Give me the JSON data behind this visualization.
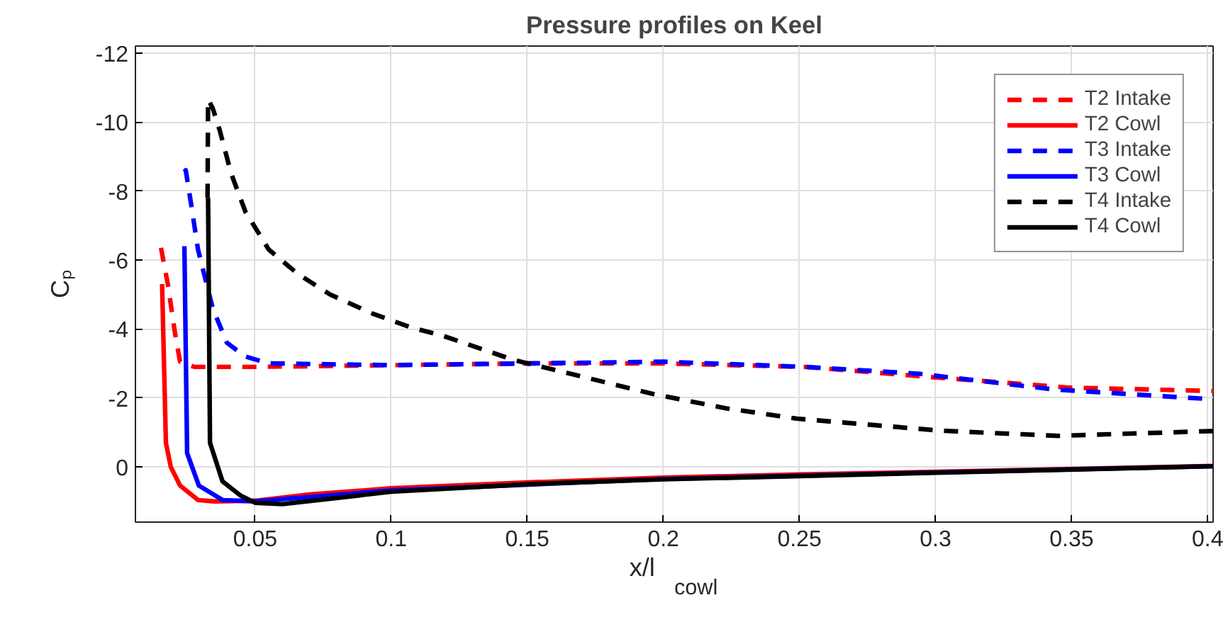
{
  "chart_data": {
    "type": "line",
    "title": "Pressure profiles on Keel",
    "xlabel": "x/l$_{cowl}$",
    "ylabel": "Cₚ",
    "xlim": [
      0.006,
      0.402
    ],
    "ylim": [
      1.6,
      -12.2
    ],
    "xticks": [
      0.05,
      0.1,
      0.15,
      0.2,
      0.25,
      0.3,
      0.35,
      0.4
    ],
    "yticks": [
      -12,
      -10,
      -8,
      -6,
      -4,
      -2,
      0
    ],
    "grid": true,
    "legend": "top right",
    "series": [
      {
        "name": "T2 Intake",
        "color": "#ff0000",
        "line_style": "dashed",
        "x": [
          0.0154,
          0.0179,
          0.0205,
          0.0224,
          0.0276,
          0.05,
          0.1,
          0.15,
          0.2,
          0.252,
          0.299,
          0.349,
          0.402
        ],
        "values": [
          -6.35,
          -5.3,
          -3.9,
          -3.05,
          -2.9,
          -2.9,
          -2.95,
          -3.0,
          -3.0,
          -2.9,
          -2.6,
          -2.3,
          -2.2
        ]
      },
      {
        "name": "T2 Cowl",
        "color": "#ff0000",
        "line_style": "solid",
        "x": [
          0.0158,
          0.0165,
          0.0172,
          0.019,
          0.0224,
          0.029,
          0.035,
          0.05,
          0.07,
          0.1,
          0.15,
          0.2,
          0.25,
          0.3,
          0.35,
          0.402
        ],
        "values": [
          -5.3,
          -3,
          -0.7,
          0,
          0.54,
          0.96,
          1.0,
          0.98,
          0.8,
          0.62,
          0.45,
          0.31,
          0.22,
          0.14,
          0.06,
          -0.03
        ]
      },
      {
        "name": "T3 Intake",
        "color": "#0000ff",
        "line_style": "dashed",
        "x": [
          0.024,
          0.0245,
          0.0267,
          0.029,
          0.0344,
          0.0396,
          0.0464,
          0.055,
          0.1,
          0.15,
          0.2,
          0.252,
          0.294,
          0.343,
          0.402
        ],
        "values": [
          -8.55,
          -8.6,
          -7.5,
          -6.3,
          -4.6,
          -3.6,
          -3.2,
          -3.0,
          -2.95,
          -3.0,
          -3.05,
          -2.9,
          -2.7,
          -2.25,
          -1.96
        ]
      },
      {
        "name": "T3 Cowl",
        "color": "#0000ff",
        "line_style": "solid",
        "x": [
          0.024,
          0.025,
          0.0293,
          0.038,
          0.05,
          0.1,
          0.2,
          0.3,
          0.402
        ],
        "values": [
          -6.4,
          -0.4,
          0.54,
          0.96,
          1.0,
          0.68,
          0.35,
          0.16,
          -0.02
        ]
      },
      {
        "name": "T4 Intake",
        "color": "#000000",
        "line_style": "dashed",
        "x": [
          0.0325,
          0.0327,
          0.0344,
          0.037,
          0.0412,
          0.0464,
          0.055,
          0.0656,
          0.0775,
          0.093,
          0.107,
          0.119,
          0.145,
          0.171,
          0.197,
          0.223,
          0.249,
          0.302,
          0.345,
          0.402
        ],
        "values": [
          -7.8,
          -10.65,
          -10.4,
          -9.75,
          -8.5,
          -7.4,
          -6.3,
          -5.6,
          -5.0,
          -4.45,
          -4.05,
          -3.8,
          -3.1,
          -2.6,
          -2.1,
          -1.7,
          -1.4,
          -1.05,
          -0.9,
          -1.04
        ]
      },
      {
        "name": "T4 Cowl",
        "color": "#000000",
        "line_style": "solid",
        "x": [
          0.0327,
          0.0334,
          0.038,
          0.0448,
          0.05,
          0.06,
          0.1,
          0.15,
          0.2,
          0.3,
          0.402
        ],
        "values": [
          -7.8,
          -0.7,
          0.42,
          0.84,
          1.04,
          1.08,
          0.72,
          0.5,
          0.36,
          0.17,
          -0.02
        ]
      }
    ]
  }
}
